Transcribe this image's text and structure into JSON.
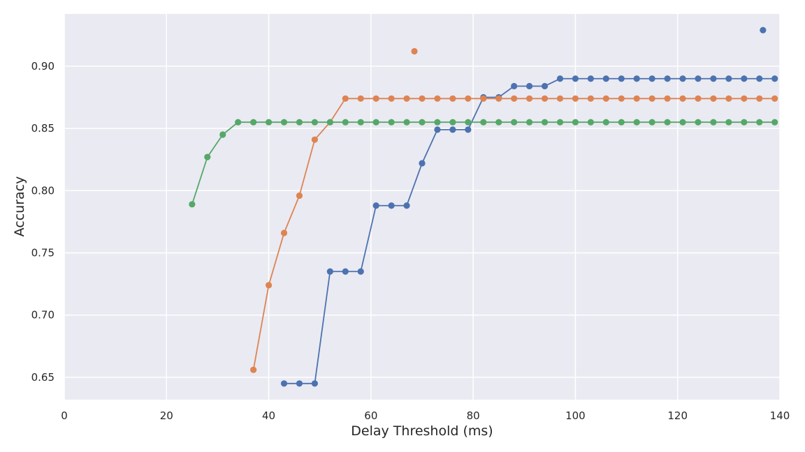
{
  "chart_data": {
    "type": "line",
    "title": "",
    "xlabel": "Delay Threshold (ms)",
    "ylabel": "Accuracy",
    "xlim": [
      0,
      140
    ],
    "ylim": [
      0.632,
      0.942
    ],
    "xticks": [
      0,
      20,
      40,
      60,
      80,
      100,
      120,
      140
    ],
    "yticks": [
      0.65,
      0.7,
      0.75,
      0.8,
      0.85,
      0.9
    ],
    "grid": true,
    "legend": "none",
    "series": [
      {
        "color": "#4c72b0",
        "x": [
          43,
          46,
          49,
          52,
          55,
          58,
          61,
          64,
          67,
          70,
          73,
          76,
          79,
          82,
          85,
          88,
          91,
          94,
          97,
          100,
          103,
          106,
          109,
          112,
          115,
          118,
          121,
          124,
          127,
          130,
          133,
          136,
          139
        ],
        "y": [
          0.645,
          0.645,
          0.645,
          0.735,
          0.735,
          0.735,
          0.788,
          0.788,
          0.788,
          0.822,
          0.849,
          0.849,
          0.849,
          0.875,
          0.875,
          0.884,
          0.884,
          0.884,
          0.89,
          0.89,
          0.89,
          0.89,
          0.89,
          0.89,
          0.89,
          0.89,
          0.89,
          0.89,
          0.89,
          0.89,
          0.89,
          0.89,
          0.89
        ],
        "outlier": {
          "x": 136.7,
          "y": 0.929
        }
      },
      {
        "color": "#dd8452",
        "x": [
          37,
          40,
          43,
          46,
          49,
          52,
          55,
          58,
          61,
          64,
          67,
          70,
          73,
          76,
          79,
          82,
          85,
          88,
          91,
          94,
          97,
          100,
          103,
          106,
          109,
          112,
          115,
          118,
          121,
          124,
          127,
          130,
          133,
          136,
          139
        ],
        "y": [
          0.656,
          0.724,
          0.766,
          0.796,
          0.841,
          0.855,
          0.874,
          0.874,
          0.874,
          0.874,
          0.874,
          0.874,
          0.874,
          0.874,
          0.874,
          0.874,
          0.874,
          0.874,
          0.874,
          0.874,
          0.874,
          0.874,
          0.874,
          0.874,
          0.874,
          0.874,
          0.874,
          0.874,
          0.874,
          0.874,
          0.874,
          0.874,
          0.874,
          0.874,
          0.874
        ],
        "outlier": {
          "x": 68.5,
          "y": 0.912
        }
      },
      {
        "color": "#55a868",
        "x": [
          25,
          28,
          31,
          34,
          37,
          40,
          43,
          46,
          49,
          52,
          55,
          58,
          61,
          64,
          67,
          70,
          73,
          76,
          79,
          82,
          85,
          88,
          91,
          94,
          97,
          100,
          103,
          106,
          109,
          112,
          115,
          118,
          121,
          124,
          127,
          130,
          133,
          136,
          139
        ],
        "y": [
          0.789,
          0.827,
          0.845,
          0.855,
          0.855,
          0.855,
          0.855,
          0.855,
          0.855,
          0.855,
          0.855,
          0.855,
          0.855,
          0.855,
          0.855,
          0.855,
          0.855,
          0.855,
          0.855,
          0.855,
          0.855,
          0.855,
          0.855,
          0.855,
          0.855,
          0.855,
          0.855,
          0.855,
          0.855,
          0.855,
          0.855,
          0.855,
          0.855,
          0.855,
          0.855,
          0.855,
          0.855,
          0.855,
          0.855
        ]
      }
    ]
  }
}
